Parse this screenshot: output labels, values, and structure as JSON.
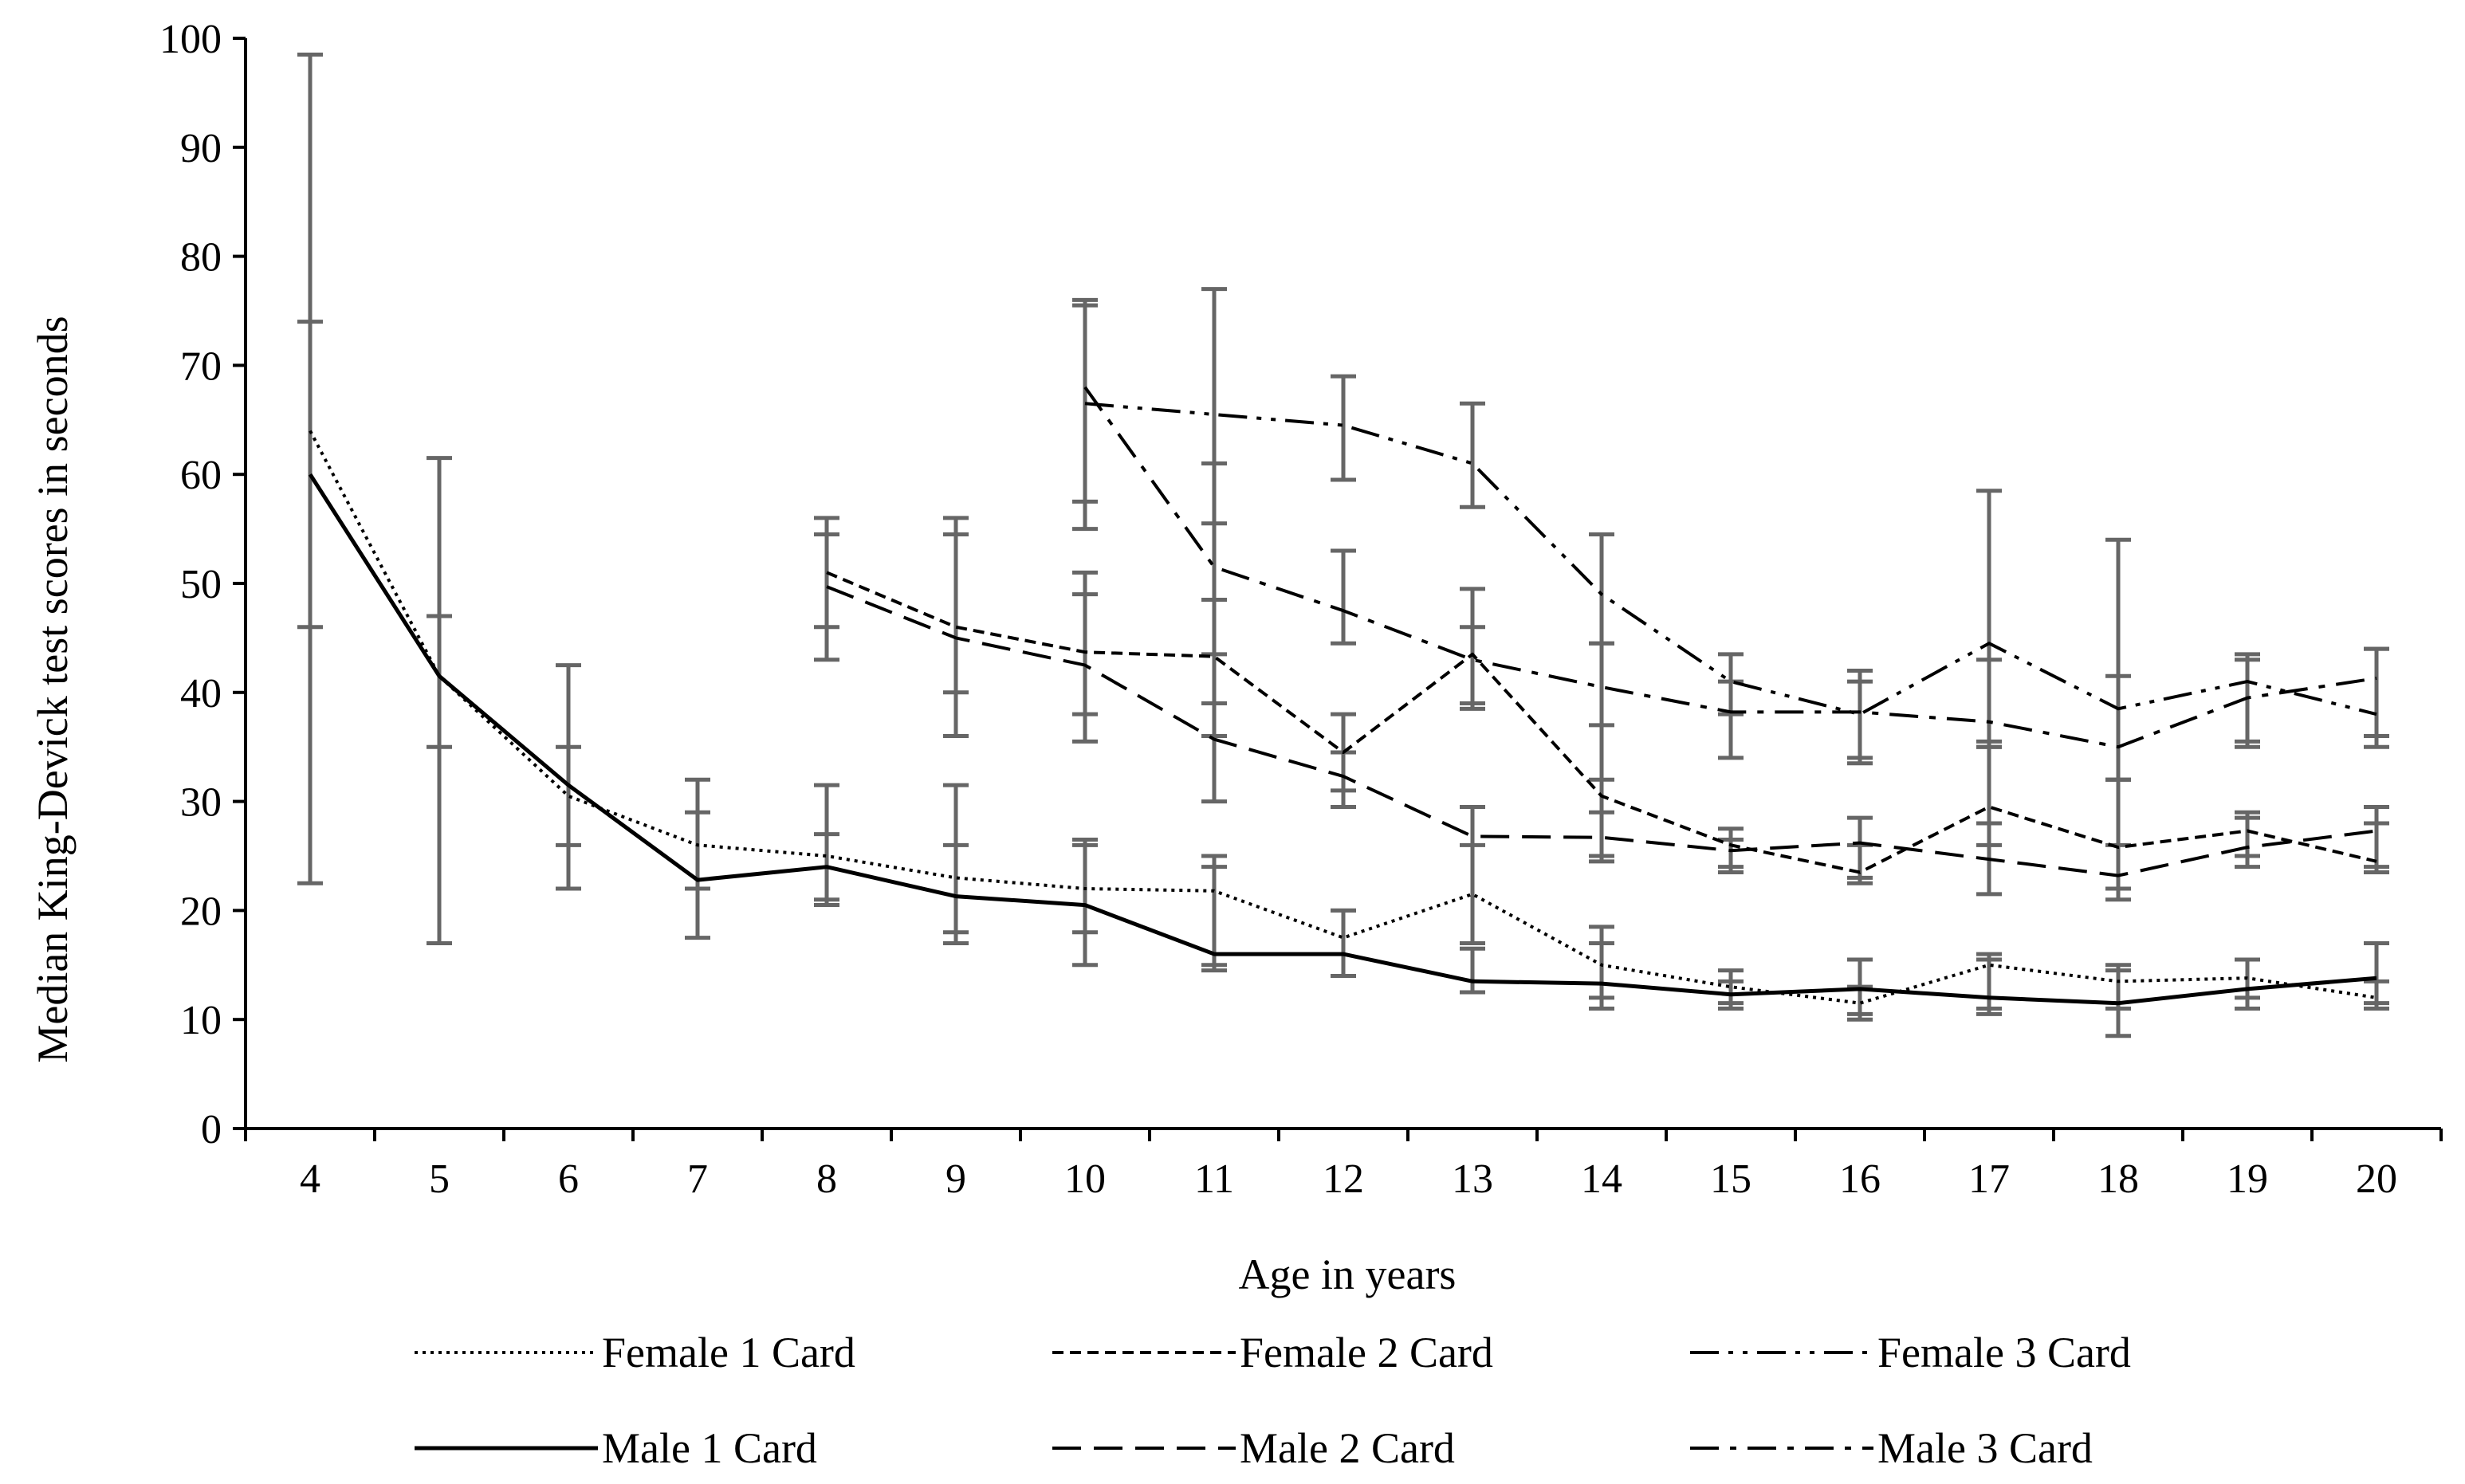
{
  "chart_data": {
    "type": "line",
    "xlabel": "Age in years",
    "ylabel": "Median King-Devick test scores in seconds",
    "x": [
      4,
      5,
      6,
      7,
      8,
      9,
      10,
      11,
      12,
      13,
      14,
      15,
      16,
      17,
      18,
      19,
      20
    ],
    "ylim": [
      0,
      100
    ],
    "yticks": [
      0,
      10,
      20,
      30,
      40,
      50,
      60,
      70,
      80,
      90,
      100
    ],
    "grid": false,
    "legend_position": "bottom",
    "error_bar_color": "#666666",
    "line_color": "#000000",
    "series": [
      {
        "name": "Female 1 Card",
        "dash": "dotted",
        "points": [
          {
            "x": 4,
            "y": 64,
            "low": 46,
            "high": 74
          },
          {
            "x": 5,
            "y": 41.5,
            "low": 35,
            "high": 47
          },
          {
            "x": 6,
            "y": 30.5,
            "low": 26,
            "high": 35
          },
          {
            "x": 7,
            "y": 26,
            "low": 22,
            "high": 29
          },
          {
            "x": 8,
            "y": 25,
            "low": 21,
            "high": 27
          },
          {
            "x": 9,
            "y": 23,
            "low": 18,
            "high": 26
          },
          {
            "x": 10,
            "y": 22,
            "low": 18,
            "high": 26
          },
          {
            "x": 11,
            "y": 21.8,
            "low": 15,
            "high": 25
          },
          {
            "x": 12,
            "y": 17.5,
            "low": 14,
            "high": 20
          },
          {
            "x": 13,
            "y": 21.5,
            "low": 17,
            "high": 26
          },
          {
            "x": 14,
            "y": 15,
            "low": 12,
            "high": 17
          },
          {
            "x": 15,
            "y": 13,
            "low": 11.5,
            "high": 14.5
          },
          {
            "x": 16,
            "y": 11.5,
            "low": 10,
            "high": 13
          },
          {
            "x": 17,
            "y": 15,
            "low": 11,
            "high": 16
          },
          {
            "x": 18,
            "y": 13.5,
            "low": 11,
            "high": 14.5
          },
          {
            "x": 19,
            "y": 13.8,
            "low": 12,
            "high": 15.5
          },
          {
            "x": 20,
            "y": 12,
            "low": 11,
            "high": 13.5
          }
        ]
      },
      {
        "name": "Female 2 Card",
        "dash": "short-dash",
        "points": [
          {
            "x": 8,
            "y": 51,
            "low": 46,
            "high": 56
          },
          {
            "x": 9,
            "y": 46,
            "low": 40,
            "high": 56
          },
          {
            "x": 10,
            "y": 43.7,
            "low": 38,
            "high": 51
          },
          {
            "x": 11,
            "y": 43.3,
            "low": 39,
            "high": 55.5
          },
          {
            "x": 12,
            "y": 34.5,
            "low": 31,
            "high": 38
          },
          {
            "x": 13,
            "y": 43.5,
            "low": 39,
            "high": 49.5
          },
          {
            "x": 14,
            "y": 30.5,
            "low": 25,
            "high": 37
          },
          {
            "x": 15,
            "y": 26,
            "low": 24,
            "high": 27.5
          },
          {
            "x": 16,
            "y": 23.5,
            "low": 22.5,
            "high": 26
          },
          {
            "x": 17,
            "y": 29.5,
            "low": 26,
            "high": 35
          },
          {
            "x": 18,
            "y": 25.8,
            "low": 22,
            "high": 32
          },
          {
            "x": 19,
            "y": 27.3,
            "low": 25,
            "high": 29
          },
          {
            "x": 20,
            "y": 24.5,
            "low": 23.5,
            "high": 28
          }
        ]
      },
      {
        "name": "Female 3 Card",
        "dash": "dash-dot-dot",
        "points": [
          {
            "x": 10,
            "y": 66.5,
            "low": 57.5,
            "high": 76
          },
          {
            "x": 11,
            "y": 65.5,
            "low": 48.5,
            "high": 77
          },
          {
            "x": 12,
            "y": 64.5,
            "low": 59.5,
            "high": 69
          },
          {
            "x": 13,
            "y": 61,
            "low": 57,
            "high": 66.5
          },
          {
            "x": 14,
            "y": 49,
            "low": 44.5,
            "high": 54.5
          },
          {
            "x": 15,
            "y": 41,
            "low": 38,
            "high": 43.5
          },
          {
            "x": 16,
            "y": 38,
            "low": 34,
            "high": 41
          },
          {
            "x": 17,
            "y": 44.5,
            "low": 35.5,
            "high": 58.5
          },
          {
            "x": 18,
            "y": 38.5,
            "low": 32,
            "high": 54
          },
          {
            "x": 19,
            "y": 41,
            "low": 35.5,
            "high": 43.5
          },
          {
            "x": 20,
            "y": 38,
            "low": 35,
            "high": 44
          }
        ]
      },
      {
        "name": "Male 1 Card",
        "dash": "solid",
        "points": [
          {
            "x": 4,
            "y": 60,
            "low": 22.5,
            "high": 98.5
          },
          {
            "x": 5,
            "y": 41.5,
            "low": 17,
            "high": 61.5
          },
          {
            "x": 6,
            "y": 31.5,
            "low": 22,
            "high": 42.5
          },
          {
            "x": 7,
            "y": 22.8,
            "low": 17.5,
            "high": 32
          },
          {
            "x": 8,
            "y": 24,
            "low": 20.5,
            "high": 31.5
          },
          {
            "x": 9,
            "y": 21.3,
            "low": 17,
            "high": 31.5
          },
          {
            "x": 10,
            "y": 20.5,
            "low": 15,
            "high": 26.5
          },
          {
            "x": 11,
            "y": 16,
            "low": 14.5,
            "high": 24
          },
          {
            "x": 12,
            "y": 16,
            "low": 14,
            "high": 20
          },
          {
            "x": 13,
            "y": 13.5,
            "low": 12.5,
            "high": 16.5
          },
          {
            "x": 14,
            "y": 13.3,
            "low": 11,
            "high": 18.5
          },
          {
            "x": 15,
            "y": 12.3,
            "low": 11,
            "high": 13.5
          },
          {
            "x": 16,
            "y": 12.8,
            "low": 10.5,
            "high": 15.5
          },
          {
            "x": 17,
            "y": 12,
            "low": 10.5,
            "high": 15.5
          },
          {
            "x": 18,
            "y": 11.5,
            "low": 8.5,
            "high": 15
          },
          {
            "x": 19,
            "y": 12.8,
            "low": 11,
            "high": 15.5
          },
          {
            "x": 20,
            "y": 13.8,
            "low": 11.5,
            "high": 17
          }
        ]
      },
      {
        "name": "Male 2 Card",
        "dash": "long-dash",
        "points": [
          {
            "x": 8,
            "y": 49.7,
            "low": 43,
            "high": 54.5
          },
          {
            "x": 9,
            "y": 45,
            "low": 36,
            "high": 54.5
          },
          {
            "x": 10,
            "y": 42.5,
            "low": 35.5,
            "high": 49
          },
          {
            "x": 11,
            "y": 35.7,
            "low": 30,
            "high": 43.5
          },
          {
            "x": 12,
            "y": 32.3,
            "low": 29.5,
            "high": 34.5
          },
          {
            "x": 13,
            "y": 26.8,
            "low": 17,
            "high": 29.5
          },
          {
            "x": 14,
            "y": 26.7,
            "low": 24.5,
            "high": 29
          },
          {
            "x": 15,
            "y": 25.5,
            "low": 23.5,
            "high": 26.5
          },
          {
            "x": 16,
            "y": 26.2,
            "low": 23,
            "high": 28.5
          },
          {
            "x": 17,
            "y": 24.7,
            "low": 21.5,
            "high": 28
          },
          {
            "x": 18,
            "y": 23.2,
            "low": 21,
            "high": 26
          },
          {
            "x": 19,
            "y": 25.8,
            "low": 24,
            "high": 28.5
          },
          {
            "x": 20,
            "y": 27.3,
            "low": 24,
            "high": 29.5
          }
        ]
      },
      {
        "name": "Male 3 Card",
        "dash": "dash-dot",
        "points": [
          {
            "x": 10,
            "y": 68,
            "low": 55,
            "high": 75.5
          },
          {
            "x": 11,
            "y": 51.5,
            "low": 36,
            "high": 61
          },
          {
            "x": 12,
            "y": 47.5,
            "low": 44.5,
            "high": 53
          },
          {
            "x": 13,
            "y": 43,
            "low": 38.5,
            "high": 46
          },
          {
            "x": 14,
            "y": 40.5,
            "low": 32,
            "high": 44.5
          },
          {
            "x": 15,
            "y": 38.2,
            "low": 34,
            "high": 41
          },
          {
            "x": 16,
            "y": 38.2,
            "low": 33.5,
            "high": 42
          },
          {
            "x": 17,
            "y": 37.3,
            "low": 35,
            "high": 43
          },
          {
            "x": 18,
            "y": 35,
            "low": 32,
            "high": 41.5
          },
          {
            "x": 19,
            "y": 39.5,
            "low": 35,
            "high": 43
          },
          {
            "x": 20,
            "y": 41.3,
            "low": 36,
            "high": 44
          }
        ]
      }
    ]
  }
}
